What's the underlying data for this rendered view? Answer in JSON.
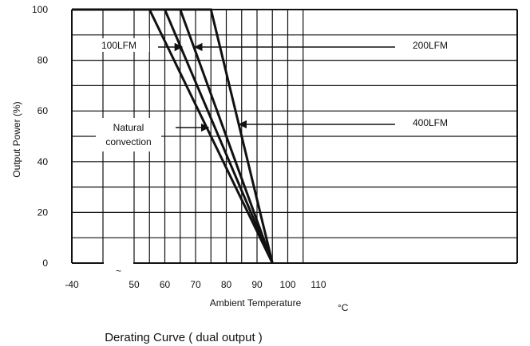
{
  "chart_data": {
    "type": "line",
    "title": "Derating Curve ( dual output )",
    "xlabel": "Ambient Temperature",
    "xunit": "°C",
    "ylabel": "Output Power  (%)",
    "xlim": [
      -40,
      110
    ],
    "ylim": [
      0,
      100
    ],
    "x_ticks": [
      "-40",
      "50",
      "60",
      "70",
      "80",
      "90",
      "100",
      "110"
    ],
    "y_ticks": [
      "0",
      "20",
      "40",
      "60",
      "80",
      "100"
    ],
    "axis_break_symbol": "~",
    "grid": true,
    "series": [
      {
        "name": "Natural convection",
        "points": [
          [
            -40,
            100
          ],
          [
            55,
            100
          ],
          [
            95,
            0
          ]
        ]
      },
      {
        "name": "100LFM",
        "points": [
          [
            -40,
            100
          ],
          [
            60,
            100
          ],
          [
            95,
            0
          ]
        ]
      },
      {
        "name": "200LFM",
        "points": [
          [
            -40,
            100
          ],
          [
            65,
            100
          ],
          [
            95,
            0
          ]
        ]
      },
      {
        "name": "400LFM",
        "points": [
          [
            -40,
            100
          ],
          [
            75,
            100
          ],
          [
            95,
            0
          ]
        ]
      }
    ],
    "annotations": [
      {
        "lines": [
          "100LFM"
        ],
        "target_series": "100LFM"
      },
      {
        "lines": [
          "200LFM"
        ],
        "target_series": "200LFM"
      },
      {
        "lines": [
          "400LFM"
        ],
        "target_series": "400LFM"
      },
      {
        "lines": [
          "Natural",
          "convection"
        ],
        "target_series": "Natural convection"
      }
    ]
  }
}
